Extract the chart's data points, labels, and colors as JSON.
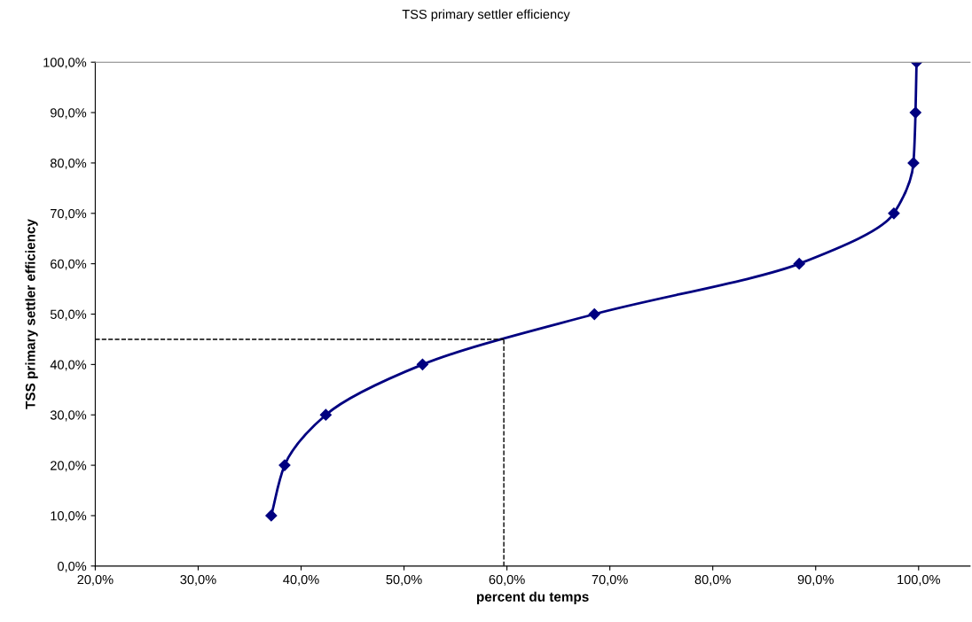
{
  "chart_data": {
    "type": "line",
    "title": "TSS primary settler efficiency",
    "xlabel": "percent du temps",
    "ylabel": "TSS primary settler efficiency",
    "series": [
      {
        "color": "#000080",
        "x": [
          37.1,
          38.4,
          42.4,
          51.8,
          68.5,
          88.4,
          97.6,
          99.5,
          99.7,
          99.8
        ],
        "values": [
          10,
          20,
          30,
          40,
          50,
          60,
          70,
          80,
          90,
          100
        ]
      }
    ],
    "marker": "diamond",
    "line_style": "solid",
    "grid": false,
    "legend": false,
    "xlim": [
      20,
      105
    ],
    "ylim": [
      0,
      100
    ],
    "xticks": [
      {
        "value": 20,
        "label": "20,0%"
      },
      {
        "value": 30,
        "label": "30,0%"
      },
      {
        "value": 40,
        "label": "40,0%"
      },
      {
        "value": 50,
        "label": "50,0%"
      },
      {
        "value": 60,
        "label": "60,0%"
      },
      {
        "value": 70,
        "label": "70,0%"
      },
      {
        "value": 80,
        "label": "80,0%"
      },
      {
        "value": 90,
        "label": "90,0%"
      },
      {
        "value": 100,
        "label": "100,0%"
      }
    ],
    "yticks": [
      {
        "value": 0,
        "label": "0,0%"
      },
      {
        "value": 10,
        "label": "10,0%"
      },
      {
        "value": 20,
        "label": "20,0%"
      },
      {
        "value": 30,
        "label": "30,0%"
      },
      {
        "value": 40,
        "label": "40,0%"
      },
      {
        "value": 50,
        "label": "50,0%"
      },
      {
        "value": 60,
        "label": "60,0%"
      },
      {
        "value": 70,
        "label": "70,0%"
      },
      {
        "value": 80,
        "label": "80,0%"
      },
      {
        "value": 90,
        "label": "90,0%"
      },
      {
        "value": 100,
        "label": "100,0%"
      }
    ],
    "ref_lines": [
      {
        "axis": "x",
        "value": 59.7,
        "color": "#000000",
        "line_style": "dashed"
      },
      {
        "axis": "y",
        "value": 45,
        "color": "#000000",
        "line_style": "dashed"
      }
    ]
  }
}
